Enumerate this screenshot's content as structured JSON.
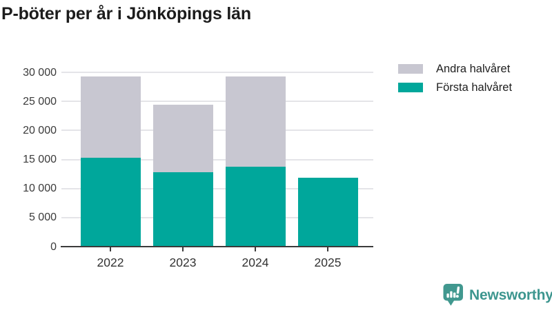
{
  "chart_data": {
    "type": "bar",
    "stacked": true,
    "title": "P-böter per år i Jönköpings län",
    "categories": [
      "2022",
      "2023",
      "2024",
      "2025"
    ],
    "series": [
      {
        "name": "Första halvåret",
        "color": "#00a79b",
        "values": [
          15350,
          12750,
          13750,
          11900
        ]
      },
      {
        "name": "Andra halvåret",
        "color": "#c8c7d1",
        "values": [
          13900,
          11650,
          15550,
          0
        ]
      }
    ],
    "xlabel": "",
    "ylabel": "",
    "ylim": [
      0,
      30000
    ],
    "yticks": [
      0,
      5000,
      10000,
      15000,
      20000,
      25000,
      30000
    ],
    "ytick_labels": [
      "0",
      "5 000",
      "10 000",
      "15 000",
      "20 000",
      "25 000",
      "30 000"
    ],
    "grid": true,
    "legend_position": "top-right"
  },
  "legend": [
    {
      "label": "Andra halvåret",
      "color": "#c8c7d1"
    },
    {
      "label": "Första halvåret",
      "color": "#00a79b"
    }
  ],
  "branding": {
    "name": "Newsworthy",
    "color": "#3d968f",
    "icon_color": "#41988f"
  },
  "colors": {
    "axis": "#3a3a3a",
    "grid": "#e4e4e8",
    "tick_text": "#3a3a3a",
    "title_text": "#1c1c1c"
  }
}
